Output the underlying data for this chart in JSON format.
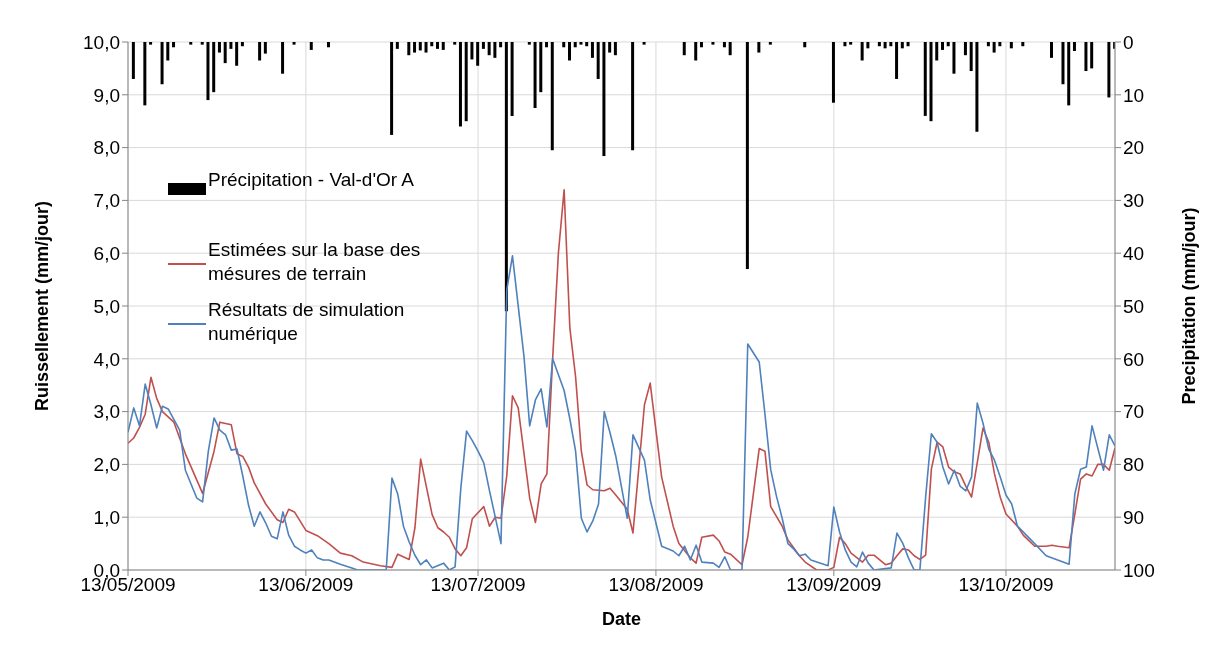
{
  "chart_data": {
    "type": "line",
    "xlabel": "Date",
    "ylabel": "Ruissellement  (mm/jour)",
    "y2label": "Precipitation (mm/jour)",
    "xlim": [
      "2009-05-13",
      "2009-11-01"
    ],
    "xticks": [
      {
        "value": "2009-05-13",
        "label": "13/05/2009"
      },
      {
        "value": "2009-06-13",
        "label": "13/06/2009"
      },
      {
        "value": "2009-07-13",
        "label": "13/07/2009"
      },
      {
        "value": "2009-08-13",
        "label": "13/08/2009"
      },
      {
        "value": "2009-09-13",
        "label": "13/09/2009"
      },
      {
        "value": "2009-10-13",
        "label": "13/10/2009"
      }
    ],
    "ylim": [
      0,
      10
    ],
    "yticks": [
      {
        "value": 0,
        "label": "0,0"
      },
      {
        "value": 1,
        "label": "1,0"
      },
      {
        "value": 2,
        "label": "2,0"
      },
      {
        "value": 3,
        "label": "3,0"
      },
      {
        "value": 4,
        "label": "4,0"
      },
      {
        "value": 5,
        "label": "5,0"
      },
      {
        "value": 6,
        "label": "6,0"
      },
      {
        "value": 7,
        "label": "7,0"
      },
      {
        "value": 8,
        "label": "8,0"
      },
      {
        "value": 9,
        "label": "9,0"
      },
      {
        "value": 10,
        "label": "10,0"
      }
    ],
    "y2lim": [
      100,
      0
    ],
    "y2ticks": [
      0,
      10,
      20,
      30,
      40,
      50,
      60,
      70,
      80,
      90,
      100
    ],
    "grid": true,
    "legend": "left",
    "marker": "none",
    "line_style": "solid",
    "series": [
      {
        "name": "Précipitation - Val-d'Or A",
        "type": "bar",
        "axis": "y2",
        "color": "#000000",
        "x": [
          "2009-05-14",
          "2009-05-16",
          "2009-05-17",
          "2009-05-19",
          "2009-05-20",
          "2009-05-21",
          "2009-05-24",
          "2009-05-26",
          "2009-05-27",
          "2009-05-28",
          "2009-05-29",
          "2009-05-30",
          "2009-05-31",
          "2009-06-01",
          "2009-06-02",
          "2009-06-05",
          "2009-06-06",
          "2009-06-09",
          "2009-06-11",
          "2009-06-14",
          "2009-06-17",
          "2009-06-28",
          "2009-06-29",
          "2009-07-01",
          "2009-07-02",
          "2009-07-03",
          "2009-07-04",
          "2009-07-05",
          "2009-07-06",
          "2009-07-07",
          "2009-07-09",
          "2009-07-10",
          "2009-07-11",
          "2009-07-12",
          "2009-07-13",
          "2009-07-14",
          "2009-07-15",
          "2009-07-16",
          "2009-07-17",
          "2009-07-18",
          "2009-07-19",
          "2009-07-22",
          "2009-07-23",
          "2009-07-24",
          "2009-07-25",
          "2009-07-26",
          "2009-07-28",
          "2009-07-29",
          "2009-07-30",
          "2009-07-31",
          "2009-08-01",
          "2009-08-02",
          "2009-08-03",
          "2009-08-04",
          "2009-08-05",
          "2009-08-06",
          "2009-08-09",
          "2009-08-11",
          "2009-08-18",
          "2009-08-20",
          "2009-08-21",
          "2009-08-23",
          "2009-08-25",
          "2009-08-26",
          "2009-08-29",
          "2009-08-31",
          "2009-09-02",
          "2009-09-08",
          "2009-09-13",
          "2009-09-15",
          "2009-09-16",
          "2009-09-18",
          "2009-09-19",
          "2009-09-21",
          "2009-09-22",
          "2009-09-23",
          "2009-09-24",
          "2009-09-25",
          "2009-09-26",
          "2009-09-29",
          "2009-09-30",
          "2009-10-01",
          "2009-10-02",
          "2009-10-03",
          "2009-10-04",
          "2009-10-06",
          "2009-10-07",
          "2009-10-08",
          "2009-10-10",
          "2009-10-11",
          "2009-10-12",
          "2009-10-14",
          "2009-10-16",
          "2009-10-21",
          "2009-10-23",
          "2009-10-24",
          "2009-10-25",
          "2009-10-27",
          "2009-10-28",
          "2009-10-31",
          "2009-11-01"
        ],
        "values": [
          7,
          12,
          0.5,
          8,
          3.5,
          1,
          0.5,
          0.5,
          11,
          9.5,
          2,
          4,
          1.3,
          4.5,
          0.8,
          3.5,
          2.2,
          6,
          0.5,
          1.5,
          1,
          17.6,
          1.3,
          2.5,
          2,
          1.6,
          2,
          0.8,
          1.3,
          1.5,
          0.5,
          16,
          15,
          3.3,
          4.5,
          1.3,
          2.5,
          3,
          1,
          51,
          14,
          0.5,
          12.5,
          9.5,
          1,
          20.5,
          1,
          3.5,
          1,
          0.5,
          0.8,
          3,
          7,
          21.6,
          2,
          2.5,
          20.5,
          0.5,
          2.5,
          3.5,
          1,
          0.5,
          1,
          2.5,
          43,
          2,
          0.5,
          1,
          11.5,
          0.8,
          0.5,
          3.5,
          1.2,
          0.8,
          1.2,
          0.8,
          7,
          1.2,
          0.8,
          14,
          15,
          3.5,
          1.5,
          0.8,
          6,
          2.5,
          5.5,
          17,
          0.8,
          2,
          0.8,
          1.2,
          0.8,
          3,
          8,
          12,
          1.7,
          5.5,
          5,
          10.5,
          1.3
        ]
      },
      {
        "name": "Estimées sur la base des mésures de terrain",
        "color": "#c0504d",
        "x": [
          "2009-05-13",
          "2009-05-14",
          "2009-05-15",
          "2009-05-16",
          "2009-05-17",
          "2009-05-18",
          "2009-05-19",
          "2009-05-20",
          "2009-05-21",
          "2009-05-23",
          "2009-05-26",
          "2009-05-28",
          "2009-05-29",
          "2009-05-31",
          "2009-06-01",
          "2009-06-02",
          "2009-06-03",
          "2009-06-04",
          "2009-06-06",
          "2009-06-08",
          "2009-06-09",
          "2009-06-10",
          "2009-06-11",
          "2009-06-13",
          "2009-06-15",
          "2009-06-17",
          "2009-06-19",
          "2009-06-21",
          "2009-06-23",
          "2009-06-26",
          "2009-06-28",
          "2009-06-29",
          "2009-07-01",
          "2009-07-02",
          "2009-07-03",
          "2009-07-05",
          "2009-07-06",
          "2009-07-07",
          "2009-07-08",
          "2009-07-09",
          "2009-07-10",
          "2009-07-11",
          "2009-07-12",
          "2009-07-14",
          "2009-07-15",
          "2009-07-16",
          "2009-07-17",
          "2009-07-18",
          "2009-07-19",
          "2009-07-20",
          "2009-07-22",
          "2009-07-23",
          "2009-07-24",
          "2009-07-25",
          "2009-07-26",
          "2009-07-27",
          "2009-07-28",
          "2009-07-29",
          "2009-07-30",
          "2009-07-31",
          "2009-08-01",
          "2009-08-02",
          "2009-08-04",
          "2009-08-05",
          "2009-08-06",
          "2009-08-08",
          "2009-08-09",
          "2009-08-11",
          "2009-08-12",
          "2009-08-13",
          "2009-08-14",
          "2009-08-16",
          "2009-08-17",
          "2009-08-19",
          "2009-08-20",
          "2009-08-21",
          "2009-08-23",
          "2009-08-24",
          "2009-08-25",
          "2009-08-26",
          "2009-08-28",
          "2009-08-29",
          "2009-08-31",
          "2009-09-01",
          "2009-09-02",
          "2009-09-04",
          "2009-09-05",
          "2009-09-06",
          "2009-09-07",
          "2009-09-08",
          "2009-09-10",
          "2009-09-12",
          "2009-09-13",
          "2009-09-14",
          "2009-09-15",
          "2009-09-16",
          "2009-09-18",
          "2009-09-19",
          "2009-09-20",
          "2009-09-22",
          "2009-09-23",
          "2009-09-24",
          "2009-09-25",
          "2009-09-26",
          "2009-09-27",
          "2009-09-28",
          "2009-09-29",
          "2009-09-30",
          "2009-10-01",
          "2009-10-02",
          "2009-10-03",
          "2009-10-04",
          "2009-10-05",
          "2009-10-06",
          "2009-10-07",
          "2009-10-09",
          "2009-10-10",
          "2009-10-11",
          "2009-10-12",
          "2009-10-13",
          "2009-10-15",
          "2009-10-16",
          "2009-10-18",
          "2009-10-20",
          "2009-10-21",
          "2009-10-22",
          "2009-10-24",
          "2009-10-25",
          "2009-10-26",
          "2009-10-27",
          "2009-10-28",
          "2009-10-29",
          "2009-10-30",
          "2009-10-31",
          "2009-11-01"
        ],
        "values": [
          2.4,
          2.5,
          2.7,
          2.95,
          3.65,
          3.25,
          3.0,
          2.9,
          2.8,
          2.2,
          1.45,
          2.25,
          2.8,
          2.75,
          2.2,
          2.15,
          1.95,
          1.65,
          1.25,
          0.95,
          0.9,
          1.15,
          1.1,
          0.75,
          0.65,
          0.5,
          0.32,
          0.27,
          0.15,
          0.08,
          0.05,
          0.3,
          0.2,
          0.8,
          2.1,
          1.05,
          0.8,
          0.72,
          0.62,
          0.4,
          0.27,
          0.42,
          0.97,
          1.2,
          0.83,
          1.0,
          0.98,
          1.78,
          3.3,
          3.07,
          1.36,
          0.9,
          1.63,
          1.82,
          4.0,
          6.0,
          7.2,
          4.58,
          3.66,
          2.25,
          1.61,
          1.52,
          1.5,
          1.55,
          1.42,
          1.15,
          0.7,
          3.13,
          3.54,
          2.65,
          1.76,
          0.83,
          0.5,
          0.23,
          0.13,
          0.62,
          0.66,
          0.55,
          0.34,
          0.3,
          0.1,
          0.62,
          2.3,
          2.25,
          1.2,
          0.83,
          0.57,
          0.42,
          0.27,
          0.15,
          0.0,
          0,
          0.05,
          0.62,
          0.5,
          0.32,
          0.15,
          0.28,
          0.28,
          0.1,
          0.13,
          0.27,
          0.4,
          0.38,
          0.27,
          0.2,
          0.28,
          1.91,
          2.42,
          2.33,
          1.95,
          1.86,
          1.82,
          1.59,
          1.38,
          2.69,
          2.42,
          1.82,
          1.38,
          1.06,
          0.83,
          0.66,
          0.45,
          0.45,
          0.47,
          0.45,
          0.42,
          1.06,
          1.72,
          1.82,
          1.78,
          2.0,
          2.0,
          1.89,
          2.31
        ]
      },
      {
        "name": "Résultats de simulation numérique",
        "color": "#4f81bd",
        "x": [
          "2009-05-13",
          "2009-05-14",
          "2009-05-15",
          "2009-05-16",
          "2009-05-17",
          "2009-05-18",
          "2009-05-19",
          "2009-05-20",
          "2009-05-22",
          "2009-05-23",
          "2009-05-25",
          "2009-05-26",
          "2009-05-27",
          "2009-05-28",
          "2009-05-29",
          "2009-05-30",
          "2009-05-31",
          "2009-06-01",
          "2009-06-02",
          "2009-06-03",
          "2009-06-04",
          "2009-06-05",
          "2009-06-06",
          "2009-06-07",
          "2009-06-08",
          "2009-06-09",
          "2009-06-10",
          "2009-06-11",
          "2009-06-12",
          "2009-06-13",
          "2009-06-14",
          "2009-06-15",
          "2009-06-16",
          "2009-06-17",
          "2009-06-19",
          "2009-06-21",
          "2009-06-22",
          "2009-06-27",
          "2009-06-28",
          "2009-06-29",
          "2009-06-30",
          "2009-07-01",
          "2009-07-02",
          "2009-07-03",
          "2009-07-04",
          "2009-07-05",
          "2009-07-07",
          "2009-07-08",
          "2009-07-09",
          "2009-07-10",
          "2009-07-11",
          "2009-07-12",
          "2009-07-13",
          "2009-07-14",
          "2009-07-15",
          "2009-07-16",
          "2009-07-17",
          "2009-07-18",
          "2009-07-19",
          "2009-07-21",
          "2009-07-22",
          "2009-07-23",
          "2009-07-24",
          "2009-07-25",
          "2009-07-26",
          "2009-07-28",
          "2009-07-29",
          "2009-07-30",
          "2009-07-31",
          "2009-08-01",
          "2009-08-02",
          "2009-08-03",
          "2009-08-04",
          "2009-08-05",
          "2009-08-06",
          "2009-08-08",
          "2009-08-09",
          "2009-08-11",
          "2009-08-12",
          "2009-08-14",
          "2009-08-16",
          "2009-08-17",
          "2009-08-18",
          "2009-08-19",
          "2009-08-20",
          "2009-08-21",
          "2009-08-23",
          "2009-08-24",
          "2009-08-25",
          "2009-08-26",
          "2009-08-28",
          "2009-08-29",
          "2009-08-31",
          "2009-09-01",
          "2009-09-02",
          "2009-09-03",
          "2009-09-04",
          "2009-09-05",
          "2009-09-06",
          "2009-09-07",
          "2009-09-08",
          "2009-09-09",
          "2009-09-12",
          "2009-09-13",
          "2009-09-14",
          "2009-09-15",
          "2009-09-16",
          "2009-09-17",
          "2009-09-18",
          "2009-09-19",
          "2009-09-20",
          "2009-09-23",
          "2009-09-24",
          "2009-09-25",
          "2009-09-26",
          "2009-09-27",
          "2009-09-28",
          "2009-09-29",
          "2009-09-30",
          "2009-10-01",
          "2009-10-02",
          "2009-10-03",
          "2009-10-04",
          "2009-10-05",
          "2009-10-06",
          "2009-10-07",
          "2009-10-08",
          "2009-10-09",
          "2009-10-10",
          "2009-10-11",
          "2009-10-12",
          "2009-10-13",
          "2009-10-14",
          "2009-10-15",
          "2009-10-18",
          "2009-10-20",
          "2009-10-24",
          "2009-10-25",
          "2009-10-26",
          "2009-10-27",
          "2009-10-28",
          "2009-10-30",
          "2009-10-31",
          "2009-11-01"
        ],
        "values": [
          2.61,
          3.07,
          2.73,
          3.52,
          3.13,
          2.69,
          3.1,
          3.05,
          2.65,
          1.89,
          1.36,
          1.29,
          2.25,
          2.88,
          2.65,
          2.56,
          2.27,
          2.29,
          1.78,
          1.23,
          0.83,
          1.1,
          0.89,
          0.64,
          0.59,
          1.1,
          0.66,
          0.45,
          0.38,
          0.32,
          0.38,
          0.23,
          0.19,
          0.19,
          0.11,
          0.04,
          0,
          0,
          1.74,
          1.44,
          0.83,
          0.53,
          0.28,
          0.1,
          0.19,
          0.04,
          0.13,
          0,
          0.06,
          1.55,
          2.63,
          2.45,
          2.25,
          2.03,
          1.5,
          1.0,
          0.5,
          5.3,
          5.95,
          4.05,
          2.73,
          3.22,
          3.43,
          2.71,
          4.0,
          3.4,
          2.86,
          2.25,
          0.98,
          0.72,
          0.93,
          1.25,
          3.0,
          2.6,
          2.16,
          0.98,
          2.56,
          2.08,
          1.33,
          0.45,
          0.36,
          0.27,
          0.45,
          0.19,
          0.47,
          0.15,
          0.13,
          0.05,
          0.25,
          0,
          0,
          4.28,
          3.94,
          2.95,
          1.9,
          1.4,
          0.98,
          0.5,
          0.4,
          0.27,
          0.3,
          0.19,
          0.08,
          1.19,
          0.72,
          0.38,
          0.15,
          0.06,
          0.34,
          0.13,
          0,
          0.04,
          0.7,
          0.51,
          0.23,
          0,
          0,
          1.38,
          2.58,
          2.42,
          1.95,
          1.63,
          1.89,
          1.59,
          1.5,
          1.76,
          3.16,
          2.78,
          2.29,
          2.08,
          1.76,
          1.42,
          1.25,
          0.83,
          0.5,
          0.27,
          0.11,
          1.44,
          1.91,
          1.95,
          2.73,
          1.89,
          2.56,
          2.35
        ]
      }
    ]
  }
}
